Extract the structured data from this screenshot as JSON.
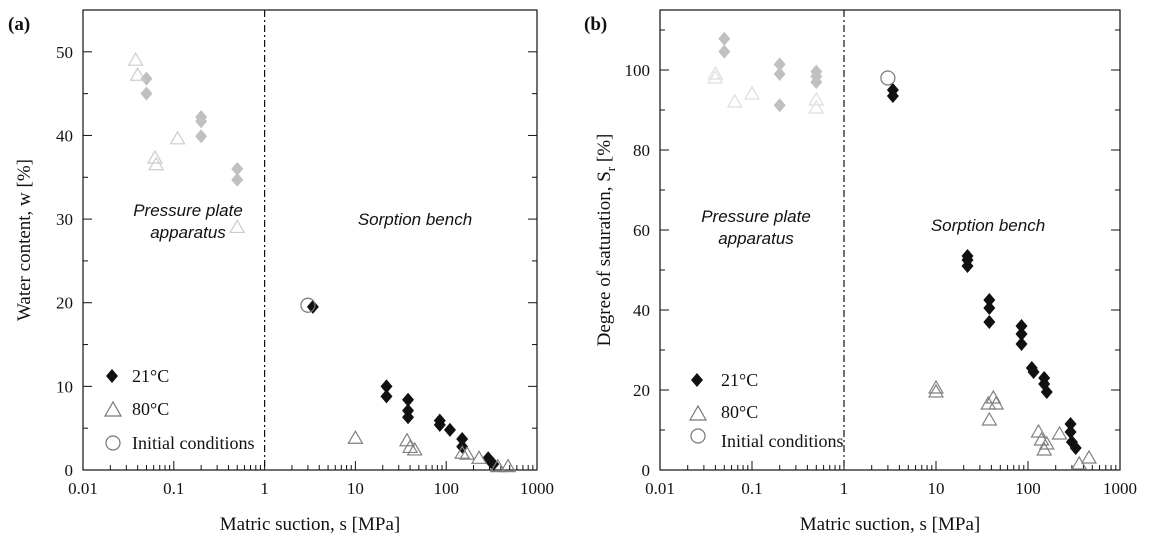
{
  "chart_data": [
    {
      "panel_label": "(a)",
      "type": "scatter",
      "xscale": "log",
      "xlim": [
        0.01,
        1000
      ],
      "ylim": [
        0,
        55
      ],
      "xlabel": "Matric suction, s [MPa]",
      "ylabel": "Water content, w [%]",
      "xticks": [
        "0.01",
        "0.1",
        "1",
        "10",
        "100",
        "1000"
      ],
      "yticks": [
        "0",
        "10",
        "20",
        "30",
        "40",
        "50"
      ],
      "ytick_values": [
        0,
        10,
        20,
        30,
        40,
        50
      ],
      "divider_x": 1,
      "regions": [
        {
          "lines": [
            "Pressure plate",
            "apparatus"
          ]
        },
        {
          "lines": [
            "Sorption bench"
          ]
        }
      ],
      "legend": [
        "21°C",
        "80°C",
        "Initial conditions"
      ],
      "series": [
        {
          "name": "21°C",
          "marker": "diamond",
          "color": "#111111",
          "x": [
            3.4,
            22,
            22,
            38,
            38,
            38,
            85,
            85,
            110,
            150,
            150,
            290,
            310,
            330
          ],
          "y": [
            19.5,
            10,
            8.8,
            8.4,
            7.1,
            6.3,
            5.9,
            5.4,
            4.8,
            3.7,
            2.8,
            1.4,
            1.0,
            0.7
          ]
        },
        {
          "name": "21°C (pressure plate)",
          "marker": "diamond",
          "color": "#c0c0c0",
          "x": [
            0.05,
            0.05,
            0.2,
            0.2,
            0.2,
            0.5,
            0.5
          ],
          "y": [
            46.8,
            45,
            42.2,
            41.7,
            39.9,
            36,
            34.7
          ]
        },
        {
          "name": "80°C",
          "marker": "triangle",
          "color": "#808080",
          "x": [
            10,
            37,
            40,
            45,
            150,
            170,
            230,
            370,
            480
          ],
          "y": [
            3.8,
            3.5,
            2.7,
            2.4,
            2.0,
            1.9,
            1.4,
            0.4,
            0.4
          ]
        },
        {
          "name": "80°C (pressure plate)",
          "marker": "triangle",
          "color": "#cccccc",
          "x": [
            0.038,
            0.04,
            0.062,
            0.064,
            0.11,
            0.5
          ],
          "y": [
            49,
            47.2,
            37.3,
            36.5,
            39.6,
            29
          ]
        },
        {
          "name": "Initial conditions",
          "marker": "circle",
          "color": "#777777",
          "x": [
            3.0
          ],
          "y": [
            19.7
          ]
        }
      ]
    },
    {
      "panel_label": "(b)",
      "type": "scatter",
      "xscale": "log",
      "xlim": [
        0.01,
        1000
      ],
      "ylim": [
        0,
        115
      ],
      "xlabel": "Matric suction, s [MPa]",
      "ylabel": "Degree of saturation, S",
      "ylabel_sub": "r",
      "ylabel_tail": " [%]",
      "xticks": [
        "0.01",
        "0.1",
        "1",
        "10",
        "100",
        "1000"
      ],
      "yticks": [
        "0",
        "20",
        "40",
        "60",
        "80",
        "100"
      ],
      "ytick_values": [
        0,
        20,
        40,
        60,
        80,
        100
      ],
      "divider_x": 1,
      "regions": [
        {
          "lines": [
            "Pressure plate",
            "apparatus"
          ]
        },
        {
          "lines": [
            "Sorption bench"
          ]
        }
      ],
      "legend": [
        "21°C",
        "80°C",
        "Initial conditions"
      ],
      "series": [
        {
          "name": "21°C",
          "marker": "diamond",
          "color": "#111111",
          "x": [
            3.4,
            3.4,
            22,
            22,
            22,
            38,
            38,
            38,
            85,
            85,
            85,
            110,
            115,
            150,
            150,
            160,
            290,
            290,
            300,
            330
          ],
          "y": [
            95,
            93.5,
            53.5,
            52.5,
            51,
            42.5,
            40.5,
            37,
            36,
            34,
            31.5,
            25.5,
            24.5,
            23,
            21.5,
            19.5,
            11.5,
            9.5,
            7,
            5.5
          ]
        },
        {
          "name": "21°C (pressure plate)",
          "marker": "diamond",
          "color": "#c0c0c0",
          "x": [
            0.05,
            0.05,
            0.2,
            0.2,
            0.2,
            0.5,
            0.5,
            0.5
          ],
          "y": [
            107.8,
            104.6,
            101.4,
            99,
            91.2,
            99.6,
            98.4,
            97
          ]
        },
        {
          "name": "80°C",
          "marker": "triangle",
          "color": "#808080",
          "x": [
            10,
            10,
            37,
            38,
            42,
            45,
            130,
            140,
            150,
            160,
            220,
            360,
            460
          ],
          "y": [
            20.5,
            19.5,
            16.5,
            12.5,
            18,
            16.5,
            9.5,
            7.5,
            5,
            6.5,
            9,
            1.5,
            3
          ]
        },
        {
          "name": "80°C (pressure plate)",
          "marker": "triangle",
          "color": "#dddddd",
          "x": [
            0.04,
            0.04,
            0.065,
            0.1,
            0.5,
            0.5
          ],
          "y": [
            99,
            98,
            92,
            94,
            92.5,
            90.5
          ]
        },
        {
          "name": "Initial conditions",
          "marker": "circle",
          "color": "#777777",
          "x": [
            3.0
          ],
          "y": [
            98
          ]
        }
      ]
    }
  ]
}
